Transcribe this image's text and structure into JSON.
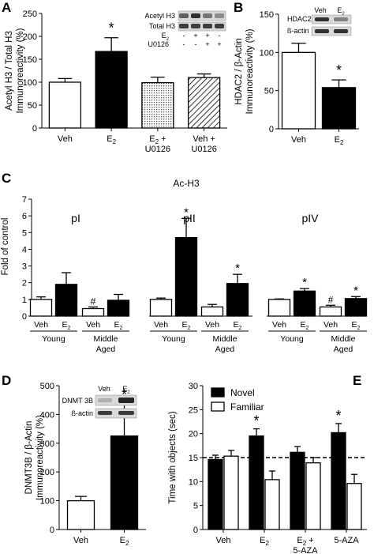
{
  "chart_data": [
    {
      "panel": "A",
      "type": "bar",
      "ylabel_line1": "Acetyl H3 / Total H3",
      "ylabel_line2": "Immunoreactivity (%)",
      "ylim": [
        0,
        250
      ],
      "yticks": [
        "0",
        "50",
        "100",
        "150",
        "200",
        "250"
      ],
      "categories": [
        {
          "line1": "Veh",
          "line2": ""
        },
        {
          "line1": "E",
          "sub": "2",
          "line2": ""
        },
        {
          "line1": "E",
          "sub": "2",
          "plus": " +",
          "line2": "U0126"
        },
        {
          "line1": "Veh +",
          "line2": "U0126"
        }
      ],
      "values": [
        100,
        167,
        99,
        110
      ],
      "errors": [
        8,
        30,
        12,
        8
      ],
      "fills": [
        "white",
        "black",
        "dots",
        "hatch"
      ],
      "significance": [
        "",
        "*",
        "",
        ""
      ],
      "blot": {
        "rows": [
          "Acetyl H3",
          "Total H3"
        ],
        "conditions": [
          {
            "label": "E",
            "sub": "2",
            "marks": [
              "-",
              "+",
              "+",
              "-"
            ]
          },
          {
            "label": "U0126",
            "sub": "",
            "marks": [
              "-",
              "-",
              "+",
              "+"
            ]
          }
        ]
      }
    },
    {
      "panel": "B",
      "type": "bar",
      "ylabel_line1": "HDAC2 / β-Actin",
      "ylabel_line2": "Immunoreactivity (%)",
      "ylim": [
        0,
        150
      ],
      "yticks": [
        "0",
        "50",
        "100",
        "150"
      ],
      "categories": [
        {
          "line1": "Veh",
          "line2": ""
        },
        {
          "line1": "E",
          "sub": "2",
          "line2": ""
        }
      ],
      "values": [
        100,
        54
      ],
      "errors": [
        12,
        10
      ],
      "fills": [
        "white",
        "black"
      ],
      "significance": [
        "",
        "*"
      ],
      "blot": {
        "rows": [
          "HDAC2",
          "ß-actin"
        ],
        "lane_labels": [
          {
            "label": "Veh",
            "sub": ""
          },
          {
            "label": "E",
            "sub": "2"
          }
        ]
      }
    },
    {
      "panel": "C",
      "type": "bar",
      "title": "Ac-H3",
      "ylabel": "Fold of control",
      "ylim": [
        0,
        7
      ],
      "yticks": [
        "0",
        "1",
        "2",
        "3",
        "4",
        "5",
        "6",
        "7"
      ],
      "groups": [
        {
          "name": "pI",
          "values": [
            1.0,
            1.9,
            0.45,
            0.95
          ],
          "errors": [
            0.15,
            0.7,
            0.1,
            0.35
          ],
          "significance": [
            "",
            "",
            "#",
            ""
          ]
        },
        {
          "name": "pII",
          "values": [
            1.0,
            4.7,
            0.55,
            1.95
          ],
          "errors": [
            0.08,
            1.15,
            0.15,
            0.55
          ],
          "significance": [
            "",
            "*",
            "",
            "*"
          ]
        },
        {
          "name": "pIV",
          "values": [
            1.0,
            1.5,
            0.55,
            1.05
          ],
          "errors": [
            0.03,
            0.15,
            0.1,
            0.12
          ],
          "significance": [
            "",
            "*",
            "#",
            "*"
          ]
        }
      ],
      "bar_labels": [
        {
          "label": "Veh",
          "sub": ""
        },
        {
          "label": "E",
          "sub": "2"
        },
        {
          "label": "Veh",
          "sub": ""
        },
        {
          "label": "E",
          "sub": "2"
        }
      ],
      "age_labels": [
        {
          "line1": "Young",
          "line2": ""
        },
        {
          "line1": "Middle",
          "line2": "Aged"
        }
      ],
      "fills": [
        "white",
        "black",
        "white",
        "black"
      ]
    },
    {
      "panel": "D",
      "type": "bar",
      "ylabel_line1": "DNMT3B / β-Actin",
      "ylabel_line2": "Immunoreactivity (%)",
      "ylim": [
        0,
        500
      ],
      "yticks": [
        "0",
        "100",
        "200",
        "300",
        "400",
        "500"
      ],
      "categories": [
        {
          "line1": "Veh",
          "line2": ""
        },
        {
          "line1": "E",
          "sub": "2",
          "line2": ""
        }
      ],
      "values": [
        100,
        325
      ],
      "errors": [
        15,
        110
      ],
      "fills": [
        "white",
        "black"
      ],
      "significance": [
        "",
        "*"
      ],
      "blot": {
        "rows": [
          "DNMT 3B",
          "ß-actin"
        ],
        "lane_labels": [
          {
            "label": "Veh",
            "sub": ""
          },
          {
            "label": "E",
            "sub": "2"
          }
        ]
      }
    },
    {
      "panel": "E",
      "type": "bar",
      "ylabel": "Time with objects (sec)",
      "ylim": [
        0,
        30
      ],
      "yticks": [
        "0",
        "5",
        "10",
        "15",
        "20",
        "25",
        "30"
      ],
      "reference_line": 15,
      "categories": [
        {
          "line1": "Veh",
          "line2": ""
        },
        {
          "line1": "E",
          "sub": "2",
          "line2": ""
        },
        {
          "line1": "E",
          "sub": "2",
          "plus": " +",
          "line2": "5-AZA"
        },
        {
          "line1": "5-AZA",
          "line2": ""
        }
      ],
      "legend": [
        {
          "name": "Novel",
          "fill": "black"
        },
        {
          "name": "Familiar",
          "fill": "white"
        }
      ],
      "legend_position": "top-left",
      "series": [
        {
          "name": "Novel",
          "values": [
            14.6,
            19.5,
            16.1,
            20.2
          ],
          "errors": [
            0.9,
            1.5,
            1.2,
            1.9
          ],
          "significance": [
            "",
            "*",
            "",
            "*"
          ]
        },
        {
          "name": "Familiar",
          "values": [
            15.3,
            10.4,
            13.9,
            9.6
          ],
          "errors": [
            1.2,
            1.8,
            1.1,
            1.9
          ],
          "significance": [
            "",
            "",
            "",
            ""
          ]
        }
      ]
    }
  ],
  "panel_letters": [
    "A",
    "B",
    "C",
    "D",
    "E"
  ]
}
